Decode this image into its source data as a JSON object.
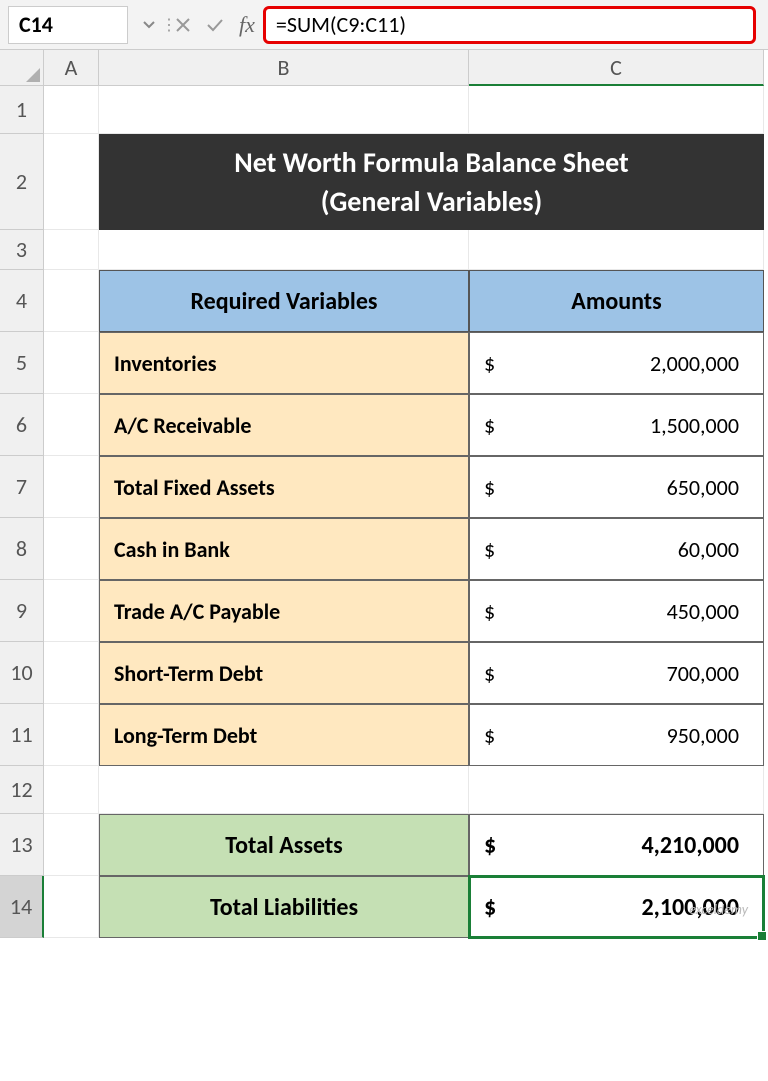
{
  "formula_bar": {
    "cell_ref": "C14",
    "formula": "=SUM(C9:C11)"
  },
  "columns": [
    "A",
    "B",
    "C"
  ],
  "rows": [
    "1",
    "2",
    "3",
    "4",
    "5",
    "6",
    "7",
    "8",
    "9",
    "10",
    "11",
    "12",
    "13",
    "14"
  ],
  "active_row": "14",
  "active_col": "C",
  "title": {
    "line1": "Net Worth Formula Balance Sheet",
    "line2": "(General Variables)"
  },
  "headers": {
    "b": "Required Variables",
    "c": "Amounts"
  },
  "data_rows": [
    {
      "label": "Inventories",
      "amount": "2,000,000"
    },
    {
      "label": "A/C Receivable",
      "amount": "1,500,000"
    },
    {
      "label": "Total Fixed Assets",
      "amount": "650,000"
    },
    {
      "label": "Cash in Bank",
      "amount": "60,000"
    },
    {
      "label": "Trade A/C Payable",
      "amount": "450,000"
    },
    {
      "label": "Short-Term Debt",
      "amount": "700,000"
    },
    {
      "label": "Long-Term Debt",
      "amount": "950,000"
    }
  ],
  "totals": [
    {
      "label": "Total Assets",
      "amount": "4,210,000"
    },
    {
      "label": "Total Liabilities",
      "amount": "2,100,000"
    }
  ],
  "currency": "$",
  "colors": {
    "banner_bg": "#333333",
    "banner_fg": "#ffffff",
    "header_bg": "#9dc3e6",
    "label_bg": "#ffe8c0",
    "total_bg": "#c5e0b4",
    "selection": "#1a7f37",
    "formula_highlight": "#e60000"
  },
  "watermark": "exceldemy"
}
